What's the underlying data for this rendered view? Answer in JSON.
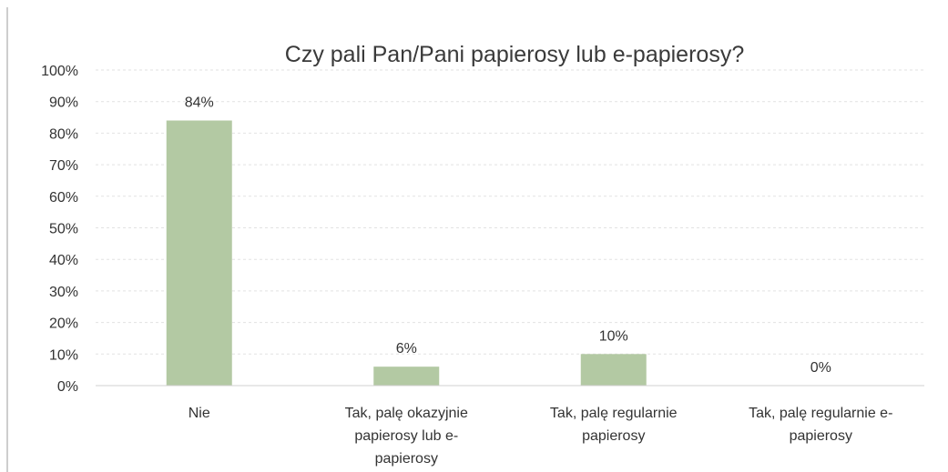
{
  "chart_data": {
    "type": "bar",
    "title": "Czy pali Pan/Pani papierosy lub e-papierosy?",
    "categories": [
      [
        "Nie"
      ],
      [
        "Tak, palę okazyjnie",
        "papierosy lub e-",
        "papierosy"
      ],
      [
        "Tak, palę regularnie",
        "papierosy"
      ],
      [
        "Tak, palę regularnie e-",
        "papierosy"
      ]
    ],
    "values": [
      84,
      6,
      10,
      0
    ],
    "data_labels": [
      "84%",
      "6%",
      "10%",
      "0%"
    ],
    "ylim": [
      0,
      100
    ],
    "y_ticks": [
      0,
      10,
      20,
      30,
      40,
      50,
      60,
      70,
      80,
      90,
      100
    ],
    "y_tick_labels": [
      "0%",
      "10%",
      "20%",
      "30%",
      "40%",
      "50%",
      "60%",
      "70%",
      "80%",
      "90%",
      "100%"
    ],
    "bar_color": "#b3c9a3",
    "grid": true,
    "legend": "none"
  }
}
